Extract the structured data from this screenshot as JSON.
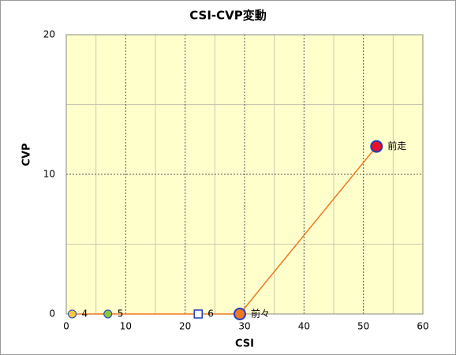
{
  "chart_data": {
    "type": "scatter",
    "title": "CSI-CVP変動",
    "x_label": "CSI",
    "y_label": "CVP",
    "xlim": [
      0,
      60
    ],
    "ylim": [
      0,
      20
    ],
    "xticks": [
      0,
      10,
      20,
      30,
      40,
      50,
      60
    ],
    "yticks": [
      0,
      10,
      20
    ],
    "xminor": [
      5,
      15,
      25,
      35,
      45,
      55
    ],
    "yminor": [
      5,
      15
    ],
    "grid": true,
    "background": "#ffffcc",
    "line_color": "#f07820",
    "series": [
      {
        "x": [
          1,
          7,
          22.2,
          29.2,
          52.2
        ],
        "values": [
          0,
          0,
          0,
          0,
          12
        ],
        "labels": [
          "4",
          "5",
          "6",
          "前々",
          "前走"
        ],
        "colors": [
          "#f5c842",
          "#8cc63f",
          "#ffffff",
          "#f07820",
          "#e8102a"
        ],
        "edge_colors": [
          "#1f3fbf",
          "#1f3fbf",
          "#1f3fbf",
          "#1f3fbf",
          "#1f3fbf"
        ],
        "shapes": [
          "circle",
          "circle",
          "square",
          "big",
          "big"
        ]
      }
    ]
  }
}
